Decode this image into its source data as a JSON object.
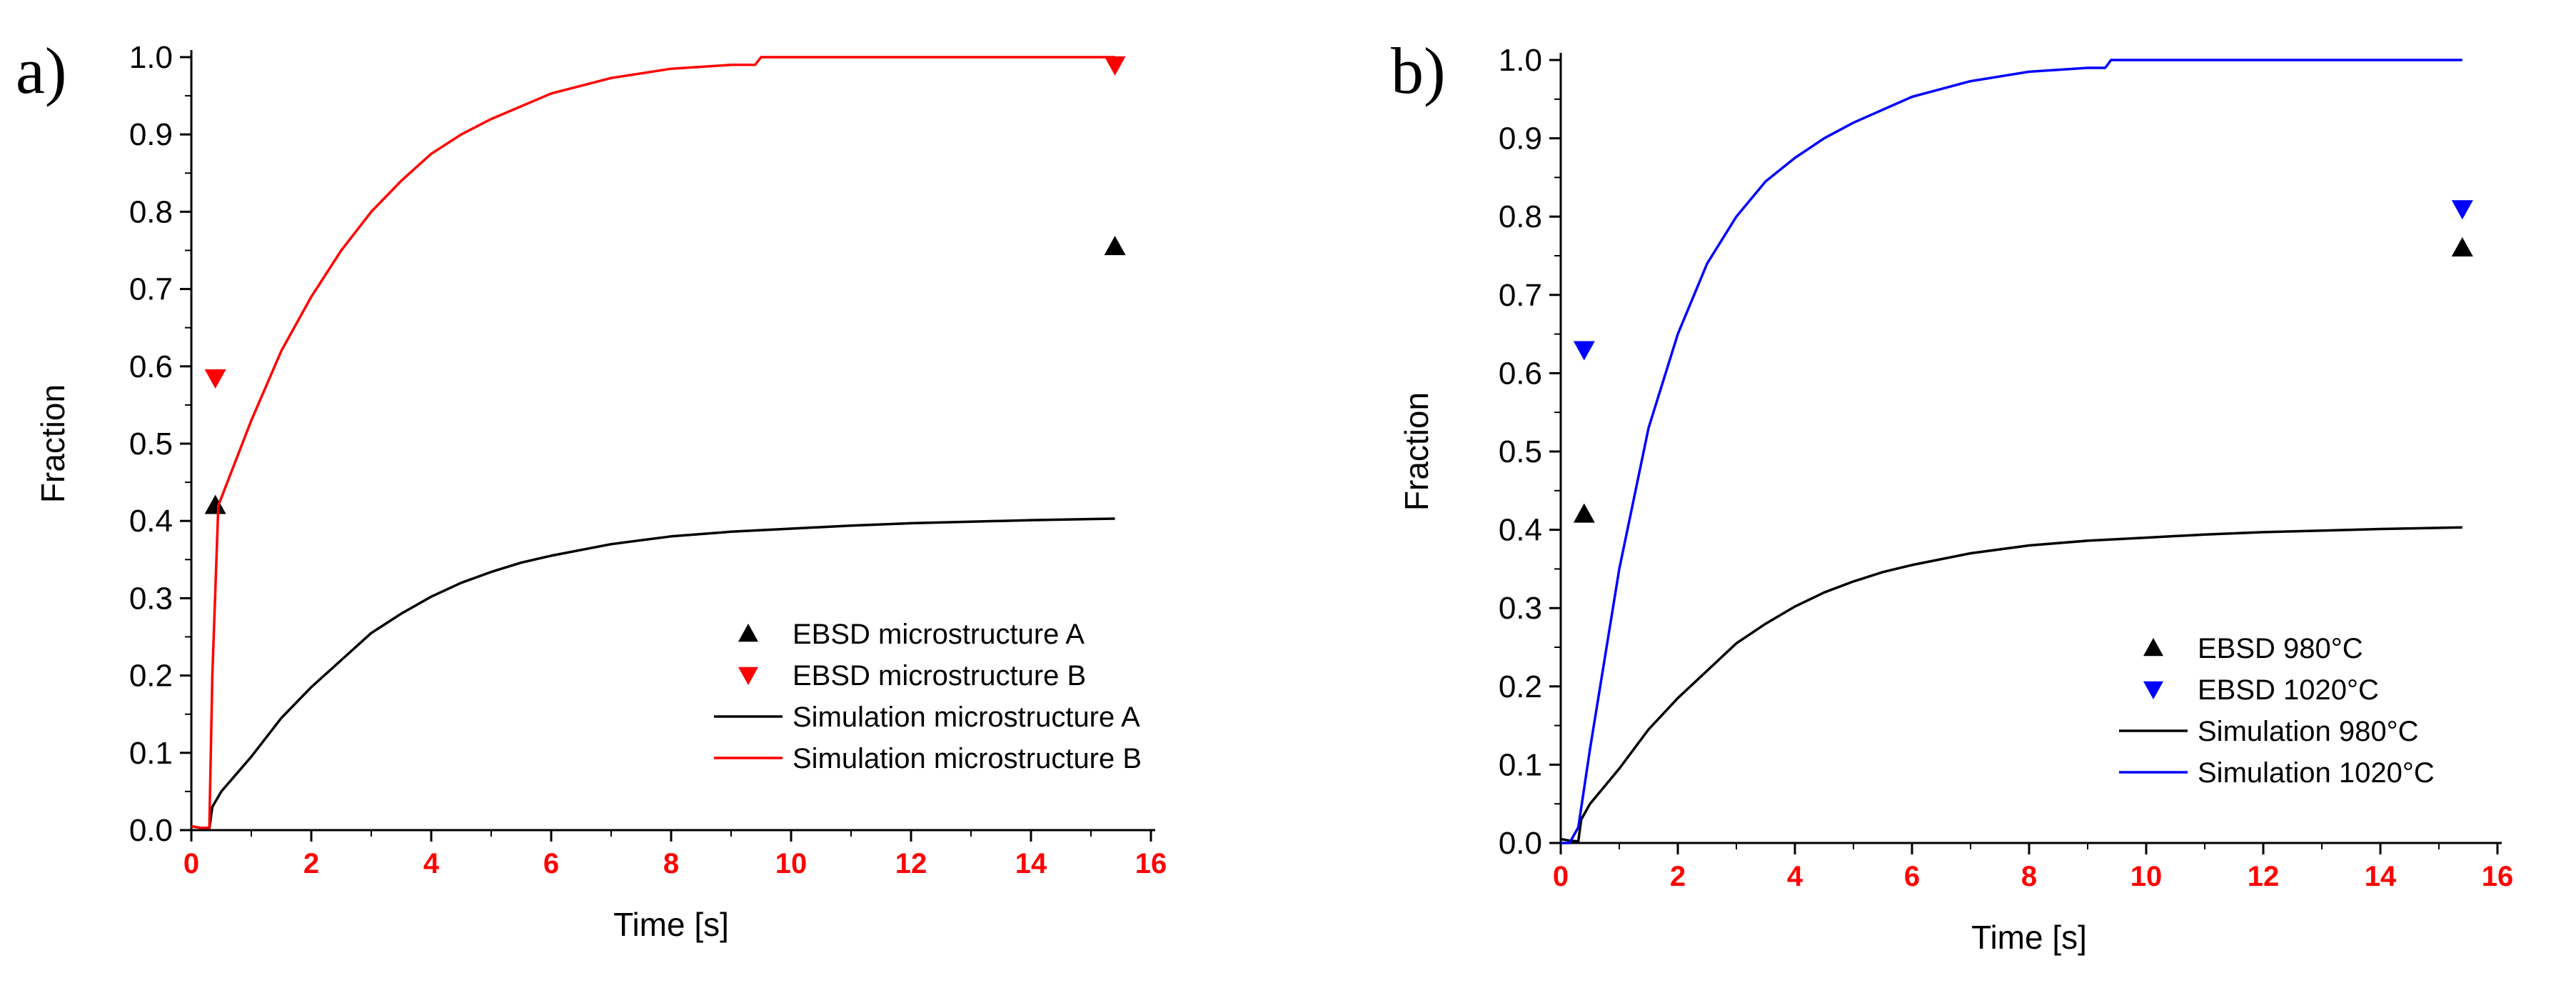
{
  "chart_data": [
    {
      "panel_label": "a)",
      "type": "line",
      "xlabel": "Time [s]",
      "ylabel": "Fraction",
      "xlim": [
        0,
        16
      ],
      "ylim": [
        0,
        1.0
      ],
      "x_ticks": [
        "0",
        "2",
        "4",
        "6",
        "8",
        "10",
        "12",
        "14",
        "16"
      ],
      "y_ticks": [
        "0.0",
        "0.1",
        "0.2",
        "0.3",
        "0.4",
        "0.5",
        "0.6",
        "0.7",
        "0.8",
        "0.9",
        "1.0"
      ],
      "tick_color_x": "#ff0000",
      "legend_position": "bottom-right",
      "series": [
        {
          "name": "EBSD microstructure A",
          "kind": "scatter",
          "marker": "triangle-up",
          "color": "#000000",
          "x": [
            0.4,
            15.4
          ],
          "y": [
            0.42,
            0.755
          ]
        },
        {
          "name": "EBSD microstructure B",
          "kind": "scatter",
          "marker": "triangle-down",
          "color": "#ff0000",
          "x": [
            0.4,
            15.4
          ],
          "y": [
            0.585,
            0.99
          ]
        },
        {
          "name": "Simulation microstructure A",
          "kind": "line",
          "color": "#000000",
          "x": [
            0,
            0.15,
            0.3,
            0.35,
            0.5,
            1,
            1.5,
            2,
            2.5,
            3,
            3.5,
            4,
            4.5,
            5,
            5.5,
            6,
            7,
            8,
            9,
            10,
            11,
            12,
            13,
            14,
            15.4
          ],
          "y": [
            0.005,
            0.003,
            0.002,
            0.03,
            0.05,
            0.095,
            0.145,
            0.185,
            0.22,
            0.255,
            0.28,
            0.302,
            0.32,
            0.334,
            0.346,
            0.355,
            0.37,
            0.38,
            0.386,
            0.39,
            0.394,
            0.397,
            0.399,
            0.401,
            0.403
          ]
        },
        {
          "name": "Simulation microstructure B",
          "kind": "line",
          "color": "#ff0000",
          "x": [
            0,
            0.15,
            0.3,
            0.35,
            0.45,
            1,
            1.5,
            2,
            2.5,
            3,
            3.5,
            4,
            4.5,
            5,
            6,
            7,
            8,
            9,
            9.4,
            9.5,
            10,
            12,
            14,
            15.4
          ],
          "y": [
            0.005,
            0.003,
            0.003,
            0.2,
            0.42,
            0.53,
            0.62,
            0.69,
            0.75,
            0.8,
            0.84,
            0.875,
            0.9,
            0.92,
            0.953,
            0.973,
            0.985,
            0.99,
            0.99,
            1.0,
            1.0,
            1.0,
            1.0,
            1.0
          ]
        }
      ]
    },
    {
      "panel_label": "b)",
      "type": "line",
      "xlabel": "Time [s]",
      "ylabel": "Fraction",
      "xlim": [
        0,
        16
      ],
      "ylim": [
        0,
        1.0
      ],
      "x_ticks": [
        "0",
        "2",
        "4",
        "6",
        "8",
        "10",
        "12",
        "14",
        "16"
      ],
      "y_ticks": [
        "0.0",
        "0.1",
        "0.2",
        "0.3",
        "0.4",
        "0.5",
        "0.6",
        "0.7",
        "0.8",
        "0.9",
        "1.0"
      ],
      "tick_color_x": "#ff0000",
      "legend_position": "bottom-right",
      "series": [
        {
          "name": "EBSD 980°C",
          "kind": "scatter",
          "marker": "triangle-up",
          "color": "#000000",
          "x": [
            0.4,
            15.4
          ],
          "y": [
            0.42,
            0.76
          ]
        },
        {
          "name": "EBSD 1020°C",
          "kind": "scatter",
          "marker": "triangle-down",
          "color": "#0000ff",
          "x": [
            0.4,
            15.4
          ],
          "y": [
            0.63,
            0.81
          ]
        },
        {
          "name": "Simulation 980°C",
          "kind": "line",
          "color": "#000000",
          "x": [
            0,
            0.15,
            0.3,
            0.35,
            0.5,
            1,
            1.5,
            2,
            2.5,
            3,
            3.5,
            4,
            4.5,
            5,
            5.5,
            6,
            7,
            8,
            9,
            10,
            11,
            12,
            13,
            14,
            15.4
          ],
          "y": [
            0.005,
            0.003,
            0.002,
            0.03,
            0.05,
            0.095,
            0.145,
            0.185,
            0.22,
            0.255,
            0.28,
            0.302,
            0.32,
            0.334,
            0.346,
            0.355,
            0.37,
            0.38,
            0.386,
            0.39,
            0.394,
            0.397,
            0.399,
            0.401,
            0.403
          ]
        },
        {
          "name": "Simulation 1020°C",
          "kind": "line",
          "color": "#0000ff",
          "x": [
            0,
            0.15,
            0.3,
            0.5,
            1,
            1.5,
            2,
            2.5,
            3,
            3.5,
            4,
            4.5,
            5,
            6,
            7,
            8,
            9,
            9.3,
            9.4,
            10,
            12,
            14,
            15.4
          ],
          "y": [
            0.0,
            0.0,
            0.02,
            0.12,
            0.35,
            0.53,
            0.65,
            0.74,
            0.8,
            0.845,
            0.875,
            0.9,
            0.92,
            0.953,
            0.973,
            0.985,
            0.99,
            0.99,
            1.0,
            1.0,
            1.0,
            1.0,
            1.0
          ]
        }
      ]
    }
  ]
}
